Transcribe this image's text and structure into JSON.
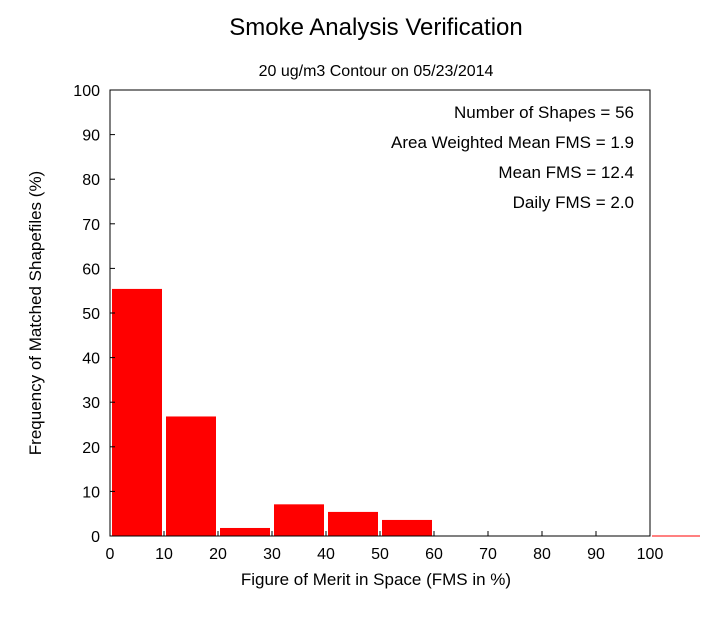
{
  "chart_data": {
    "type": "bar",
    "title": "Smoke Analysis Verification",
    "subtitle": "20 ug/m3 Contour on 05/23/2014",
    "xlabel": "Figure of Merit in Space (FMS in %)",
    "ylabel": "Frequency of Matched Shapefiles (%)",
    "xlim": [
      0,
      100
    ],
    "ylim": [
      0,
      100
    ],
    "xticks": [
      0,
      10,
      20,
      30,
      40,
      50,
      60,
      70,
      80,
      90,
      100
    ],
    "yticks": [
      0,
      10,
      20,
      30,
      40,
      50,
      60,
      70,
      80,
      90,
      100
    ],
    "bins": [
      {
        "start": 0,
        "end": 10,
        "value": 55.4
      },
      {
        "start": 10,
        "end": 20,
        "value": 26.8
      },
      {
        "start": 20,
        "end": 30,
        "value": 1.8
      },
      {
        "start": 30,
        "end": 40,
        "value": 7.1
      },
      {
        "start": 40,
        "end": 50,
        "value": 5.4
      },
      {
        "start": 50,
        "end": 60,
        "value": 3.6
      },
      {
        "start": 60,
        "end": 70,
        "value": 0
      },
      {
        "start": 70,
        "end": 80,
        "value": 0
      },
      {
        "start": 80,
        "end": 90,
        "value": 0
      },
      {
        "start": 90,
        "end": 100,
        "value": 0
      },
      {
        "start": 100,
        "end": 110,
        "value": 0
      }
    ],
    "bar_color": "#ff0000",
    "grid": false,
    "annotations": [
      "Number of Shapes = 56",
      "Area Weighted Mean FMS = 1.9",
      "Mean FMS = 12.4",
      "Daily FMS = 2.0"
    ]
  }
}
